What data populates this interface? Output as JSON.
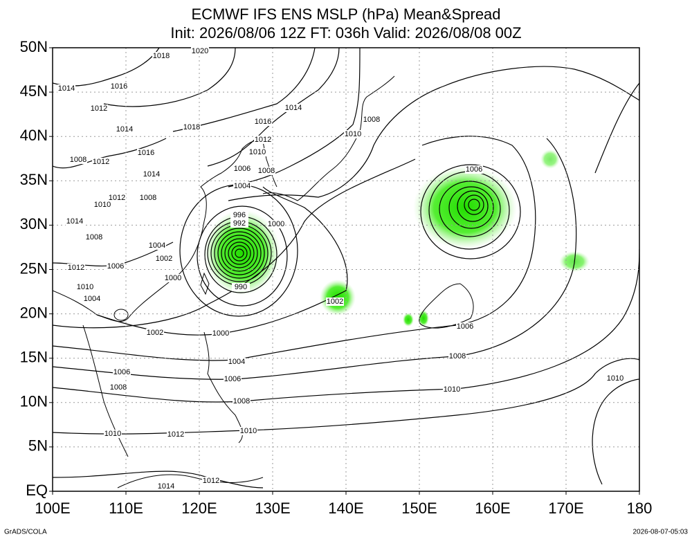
{
  "header": {
    "title": "ECMWF IFS ENS MSLP (hPa) Mean&Spread",
    "subtitle": "Init: 2026/08/06 12Z  FT: 036h  Valid: 2026/08/08 00Z"
  },
  "axes": {
    "lat_labels": [
      "EQ",
      "5N",
      "10N",
      "15N",
      "20N",
      "25N",
      "30N",
      "35N",
      "40N",
      "45N",
      "50N"
    ],
    "lon_labels": [
      "100E",
      "110E",
      "120E",
      "130E",
      "140E",
      "150E",
      "160E",
      "170E",
      "180"
    ]
  },
  "contour_labels": [
    "1018",
    "1020",
    "1014",
    "1016",
    "1012",
    "1014",
    "1018",
    "1014",
    "1016",
    "1012",
    "1010",
    "1010",
    "1008",
    "1016",
    "1012",
    "1008",
    "1014",
    "1006",
    "1008",
    "1004",
    "1012",
    "1008",
    "1010",
    "1014",
    "1008",
    "1004",
    "1002",
    "1006",
    "1012",
    "1000",
    "1010",
    "1004",
    "996",
    "992",
    "1000",
    "990",
    "1002",
    "1006",
    "1002",
    "1000",
    "1006",
    "1004",
    "1008",
    "1006",
    "1006",
    "1008",
    "1010",
    "1010",
    "1008",
    "1010",
    "1010",
    "1012",
    "1012",
    "1014"
  ],
  "footer": {
    "left": "GrADS/COLA",
    "right": "2026-08-07-05:03"
  }
}
